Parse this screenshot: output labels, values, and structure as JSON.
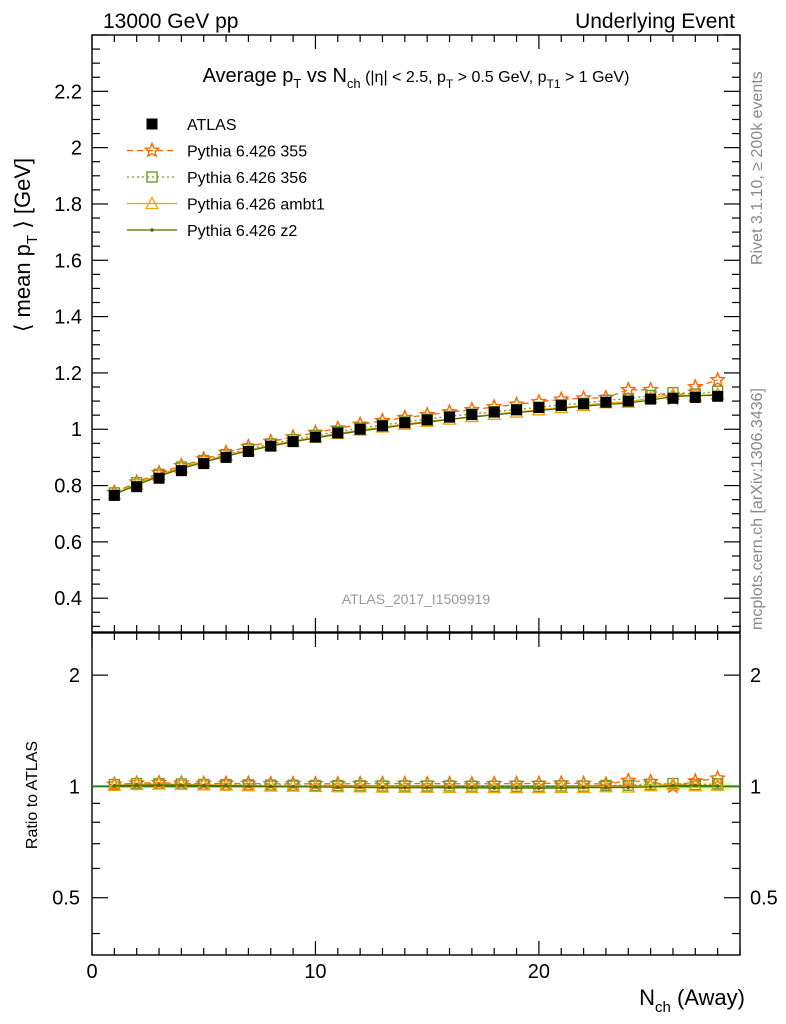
{
  "header": {
    "left": "13000 GeV pp",
    "right": "Underlying Event"
  },
  "side_texts": {
    "rivet": "Rivet 3.1.10, ≥ 200k events",
    "mcplots": "mcplots.cern.ch [arXiv:1306.3436]"
  },
  "watermark": "ATLAS_2017_I1509919",
  "chart_data": [
    {
      "type": "line",
      "panel": "main",
      "title": "Average pT vs Nch (|η| < 2.5, pT > 0.5 GeV, pT1 > 1 GeV)",
      "ylabel": "⟨ mean pT ⟩ [GeV]",
      "xlim": [
        0,
        29
      ],
      "ylim": [
        0.28,
        2.4
      ],
      "yticks": [
        0.4,
        0.6,
        0.8,
        1,
        1.2,
        1.4,
        1.6,
        1.8,
        2,
        2.2
      ],
      "xticks": [
        0,
        10,
        20
      ],
      "legend_position": "top-left",
      "x": [
        1,
        2,
        3,
        4,
        5,
        6,
        7,
        8,
        9,
        10,
        11,
        12,
        13,
        14,
        15,
        16,
        17,
        18,
        19,
        20,
        21,
        22,
        23,
        24,
        25,
        26,
        27,
        28
      ],
      "series": [
        {
          "name": "ATLAS",
          "color": "#000000",
          "marker": "square-filled",
          "values": [
            0.765,
            0.796,
            0.826,
            0.853,
            0.878,
            0.9,
            0.921,
            0.94,
            0.956,
            0.972,
            0.987,
            1.0,
            1.012,
            1.023,
            1.033,
            1.043,
            1.052,
            1.061,
            1.069,
            1.077,
            1.084,
            1.09,
            1.096,
            1.1,
            1.107,
            1.11,
            1.113,
            1.117
          ]
        },
        {
          "name": "Pythia 6.426 355",
          "color": "#ff6600",
          "marker": "star",
          "dash": "6,4",
          "values": [
            0.775,
            0.812,
            0.845,
            0.87,
            0.894,
            0.917,
            0.938,
            0.956,
            0.972,
            0.988,
            1.003,
            1.017,
            1.03,
            1.041,
            1.051,
            1.061,
            1.069,
            1.079,
            1.088,
            1.097,
            1.106,
            1.11,
            1.112,
            1.14,
            1.14,
            1.11,
            1.15,
            1.175
          ]
        },
        {
          "name": "Pythia 6.426 356",
          "color": "#6d9d2c",
          "marker": "square-open",
          "dash": "2,3",
          "values": [
            0.774,
            0.81,
            0.84,
            0.866,
            0.889,
            0.91,
            0.93,
            0.948,
            0.963,
            0.978,
            0.992,
            1.004,
            1.015,
            1.026,
            1.036,
            1.046,
            1.054,
            1.062,
            1.07,
            1.078,
            1.087,
            1.092,
            1.103,
            1.108,
            1.12,
            1.13,
            1.125,
            1.135
          ]
        },
        {
          "name": "Pythia 6.426 ambt1",
          "color": "#f0a400",
          "marker": "triangle-open",
          "dash": "",
          "values": [
            0.77,
            0.806,
            0.838,
            0.864,
            0.887,
            0.907,
            0.926,
            0.943,
            0.958,
            0.972,
            0.985,
            0.997,
            1.008,
            1.018,
            1.028,
            1.036,
            1.045,
            1.053,
            1.061,
            1.069,
            1.077,
            1.084,
            1.094,
            1.096,
            1.112,
            1.124,
            1.118,
            1.125
          ]
        },
        {
          "name": "Pythia 6.426 z2",
          "color": "#556b00",
          "marker": "dot",
          "dash": "",
          "values": [
            0.768,
            0.802,
            0.833,
            0.86,
            0.883,
            0.904,
            0.923,
            0.94,
            0.955,
            0.969,
            0.982,
            0.994,
            1.004,
            1.015,
            1.025,
            1.035,
            1.043,
            1.051,
            1.059,
            1.066,
            1.074,
            1.082,
            1.088,
            1.093,
            1.104,
            1.116,
            1.12,
            1.12
          ]
        }
      ]
    },
    {
      "type": "line",
      "panel": "ratio",
      "ylabel": "Ratio to ATLAS",
      "xlabel": "Nch (Away)",
      "ylim": [
        0.35,
        2.6
      ],
      "yscale": "log",
      "yticks": [
        0.5,
        1,
        2
      ],
      "xticks": [
        0,
        10,
        20
      ]
    }
  ]
}
